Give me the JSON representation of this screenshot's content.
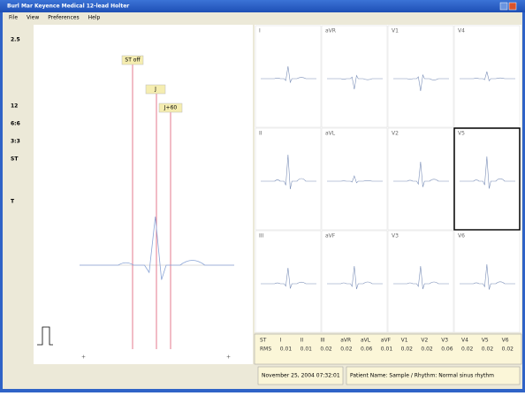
{
  "window": {
    "title": "Burl Mar Keyence Medical 12-lead Holter"
  },
  "menu": [
    "File",
    "View",
    "Preferences",
    "Help"
  ],
  "toolbar": [
    "2.5",
    "12",
    "6:6",
    "3:3",
    "ST",
    "T"
  ],
  "markers": [
    "ST off",
    "J",
    "J+60"
  ],
  "leads": [
    "I",
    "aVR",
    "V1",
    "V4",
    "II",
    "aVL",
    "V2",
    "V5",
    "III",
    "aVF",
    "V3",
    "V6"
  ],
  "table": {
    "rows": [
      [
        "ST",
        "I",
        "II",
        "III",
        "aVR",
        "aVL",
        "aVF",
        "V1",
        "V2",
        "V3",
        "V4",
        "V5",
        "V6"
      ],
      [
        "RMS",
        "0.01",
        "0.01",
        "0.02",
        "0.02",
        "0.06",
        "0.01",
        "0.02",
        "0.02",
        "0.06",
        "0.02",
        "0.02",
        "0.02"
      ]
    ]
  },
  "status": [
    "November 25, 2004 07:32:01",
    "Patient Name: Sample / Rhythm: Normal sinus rhythm"
  ]
}
